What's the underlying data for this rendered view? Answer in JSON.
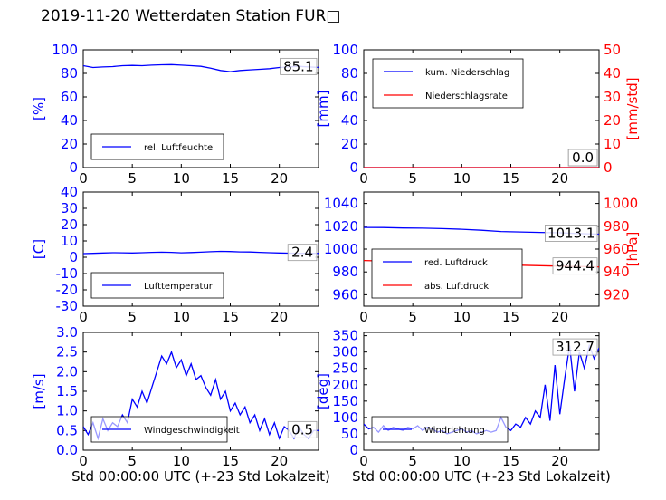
{
  "title": "2019-11-20 Wetterdaten Station FUR□",
  "xlabel": "Std 00:00:00 UTC (+-23 Std Lokalzeit)",
  "colors": {
    "primary": "#0000ff",
    "secondary": "#ff0000",
    "text": "#000000",
    "background": "#ffffff"
  },
  "chart_data": [
    {
      "type": "line",
      "id": "humidity",
      "xlim": [
        0,
        24
      ],
      "xticks": [
        0,
        5,
        10,
        15,
        20
      ],
      "ylim": [
        0,
        100
      ],
      "yticks": [
        0,
        20,
        40,
        60,
        80,
        100
      ],
      "ylabel": "[%]",
      "legend_location": "bottom-left",
      "latest_label": "85.1",
      "series": [
        {
          "name": "rel. Luftfeuchte",
          "color": "#0000ff",
          "x": [
            0,
            1,
            2,
            3,
            4,
            5,
            6,
            7,
            8,
            9,
            10,
            11,
            12,
            13,
            14,
            15,
            16,
            17,
            18,
            19,
            20,
            21,
            22,
            23,
            24
          ],
          "y": [
            86.5,
            85,
            85.5,
            85.8,
            86.5,
            86.8,
            86.5,
            87,
            87.3,
            87.5,
            87,
            86.5,
            86,
            84.5,
            82.5,
            81.5,
            82.5,
            83,
            83.5,
            84,
            85,
            85.5,
            86,
            85.5,
            85.1
          ]
        }
      ]
    },
    {
      "type": "line",
      "id": "precipitation",
      "xlim": [
        0,
        24
      ],
      "xticks": [
        0,
        5,
        10,
        15,
        20
      ],
      "ylim": [
        0,
        100
      ],
      "yticks": [
        0,
        20,
        40,
        60,
        80,
        100
      ],
      "ylabel": "[mm]",
      "y2lim": [
        0,
        50
      ],
      "y2ticks": [
        0,
        10,
        20,
        30,
        40,
        50
      ],
      "y2label": "[mm/std]",
      "legend_location": "top-left",
      "latest_label": "0.0",
      "latest_label_2": "0.0",
      "series": [
        {
          "name": "kum. Niederschlag",
          "color": "#0000ff",
          "axis": "left",
          "x": [
            0,
            24
          ],
          "y": [
            0,
            0
          ]
        },
        {
          "name": "Niederschlagsrate",
          "color": "#ff0000",
          "axis": "right",
          "x": [
            0,
            24
          ],
          "y": [
            0,
            0
          ]
        }
      ]
    },
    {
      "type": "line",
      "id": "temperature",
      "xlim": [
        0,
        24
      ],
      "xticks": [
        0,
        5,
        10,
        15,
        20
      ],
      "ylim": [
        -30,
        40
      ],
      "yticks": [
        -30,
        -20,
        -10,
        0,
        10,
        20,
        30,
        40
      ],
      "ylabel": "[C]",
      "legend_location": "bottom-left",
      "latest_label": "2.4",
      "series": [
        {
          "name": "Lufttemperatur",
          "color": "#0000ff",
          "x": [
            0,
            1,
            2,
            3,
            4,
            5,
            6,
            7,
            8,
            9,
            10,
            11,
            12,
            13,
            14,
            15,
            16,
            17,
            18,
            19,
            20,
            21,
            22,
            23,
            24
          ],
          "y": [
            2.2,
            2.4,
            2.6,
            2.8,
            2.7,
            2.6,
            2.8,
            3.0,
            3.1,
            3.0,
            2.7,
            2.9,
            3.1,
            3.4,
            3.6,
            3.5,
            3.3,
            3.2,
            3.0,
            2.8,
            2.6,
            2.5,
            2.4,
            2.4,
            2.4
          ]
        }
      ]
    },
    {
      "type": "line",
      "id": "pressure",
      "xlim": [
        0,
        24
      ],
      "xticks": [
        0,
        5,
        10,
        15,
        20
      ],
      "ylim": [
        950,
        1050
      ],
      "yticks": [
        960,
        980,
        1000,
        1020,
        1040
      ],
      "y2lim": [
        910,
        1010
      ],
      "y2ticks": [
        920,
        940,
        960,
        980,
        1000
      ],
      "y2label": "[hPa]",
      "legend_location": "bottom-left",
      "latest_label": "1013.1",
      "latest_label_2": "944.4",
      "series": [
        {
          "name": "red. Luftdruck",
          "color": "#0000ff",
          "axis": "left",
          "x": [
            0,
            2,
            4,
            6,
            8,
            10,
            12,
            14,
            16,
            18,
            20,
            22,
            24
          ],
          "y": [
            1019,
            1018.9,
            1018.5,
            1018.3,
            1017.9,
            1017.4,
            1016.5,
            1015.4,
            1015,
            1014.6,
            1014.3,
            1013.6,
            1013.1
          ]
        },
        {
          "name": "abs. Luftdruck",
          "color": "#ff0000",
          "axis": "right",
          "x": [
            0,
            2,
            4,
            6,
            8,
            10,
            12,
            14,
            16,
            18,
            20,
            22,
            24
          ],
          "y": [
            950,
            949.6,
            949.3,
            948.9,
            948.4,
            947.9,
            947.2,
            946.4,
            945.9,
            945.5,
            945.1,
            944.8,
            944.4
          ]
        }
      ]
    },
    {
      "type": "line",
      "id": "wind_speed",
      "xlim": [
        0,
        24
      ],
      "xticks": [
        0,
        5,
        10,
        15,
        20
      ],
      "ylim": [
        0,
        3.0
      ],
      "yticks": [
        0.0,
        0.5,
        1.0,
        1.5,
        2.0,
        2.5,
        3.0
      ],
      "ylabel": "[m/s]",
      "legend_location": "bottom-left",
      "latest_label": "0.5",
      "series": [
        {
          "name": "Windgeschwindigkeit",
          "color": "#0000ff",
          "x": [
            0,
            0.5,
            1,
            1.5,
            2,
            2.5,
            3,
            3.5,
            4,
            4.5,
            5,
            5.5,
            6,
            6.5,
            7,
            7.5,
            8,
            8.5,
            9,
            9.5,
            10,
            10.5,
            11,
            11.5,
            12,
            12.5,
            13,
            13.5,
            14,
            14.5,
            15,
            15.5,
            16,
            16.5,
            17,
            17.5,
            18,
            18.5,
            19,
            19.5,
            20,
            20.5,
            21,
            21.5,
            22,
            22.5,
            23,
            23.5,
            24
          ],
          "y": [
            0.6,
            0.4,
            0.7,
            0.3,
            0.8,
            0.5,
            0.7,
            0.6,
            0.9,
            0.7,
            1.3,
            1.1,
            1.5,
            1.2,
            1.6,
            2.0,
            2.4,
            2.2,
            2.5,
            2.1,
            2.3,
            1.9,
            2.2,
            1.8,
            1.9,
            1.6,
            1.4,
            1.8,
            1.3,
            1.5,
            1.0,
            1.2,
            0.9,
            1.1,
            0.7,
            0.9,
            0.5,
            0.8,
            0.4,
            0.7,
            0.3,
            0.6,
            0.5,
            0.3,
            0.6,
            0.4,
            0.3,
            0.5,
            0.5
          ]
        }
      ]
    },
    {
      "type": "line",
      "id": "wind_direction",
      "xlim": [
        0,
        24
      ],
      "xticks": [
        0,
        5,
        10,
        15,
        20
      ],
      "ylim": [
        0,
        360
      ],
      "yticks": [
        0,
        50,
        100,
        150,
        200,
        250,
        300,
        350
      ],
      "ylabel": "[deg]",
      "legend_location": "bottom-left",
      "latest_label": "312.7",
      "series": [
        {
          "name": "Windrichtung",
          "color": "#0000ff",
          "x": [
            0,
            0.5,
            1,
            1.5,
            2,
            2.5,
            3,
            3.5,
            4,
            4.5,
            5,
            5.5,
            6,
            6.5,
            7,
            7.5,
            8,
            8.5,
            9,
            9.5,
            10,
            10.5,
            11,
            11.5,
            12,
            12.5,
            13,
            13.5,
            14,
            14.5,
            15,
            15.5,
            16,
            16.5,
            17,
            17.5,
            18,
            18.5,
            19,
            19.5,
            20,
            20.5,
            21,
            21.5,
            22,
            22.5,
            23,
            23.5,
            24
          ],
          "y": [
            80,
            65,
            70,
            55,
            75,
            60,
            70,
            65,
            60,
            70,
            65,
            75,
            60,
            70,
            65,
            55,
            60,
            50,
            55,
            60,
            65,
            55,
            60,
            50,
            55,
            60,
            55,
            60,
            100,
            70,
            60,
            80,
            70,
            100,
            80,
            120,
            100,
            200,
            90,
            260,
            110,
            220,
            320,
            180,
            300,
            250,
            320,
            280,
            312.7
          ]
        }
      ]
    }
  ]
}
